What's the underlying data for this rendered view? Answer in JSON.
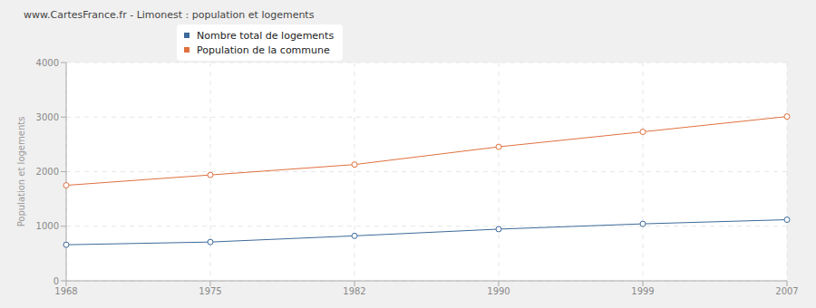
{
  "chart_data": {
    "type": "line",
    "title": "www.CartesFrance.fr - Limonest : population et logements",
    "y_label": "Population et logements",
    "categories": [
      "1968",
      "1975",
      "1982",
      "1990",
      "1999",
      "2007"
    ],
    "series": [
      {
        "name": "Nombre total de logements",
        "color": "#3d6a99",
        "marker": "circle",
        "values": [
          661,
          711,
          824,
          947,
          1044,
          1120
        ]
      },
      {
        "name": "Population de la commune",
        "color": "#e0703f",
        "marker": "circle",
        "values": [
          1750,
          1940,
          2130,
          2455,
          2730,
          3010
        ]
      }
    ],
    "ylim": [
      0,
      4000
    ],
    "yticks": [
      0,
      1000,
      2000,
      3000,
      4000
    ],
    "grid": true,
    "legend": "top"
  }
}
